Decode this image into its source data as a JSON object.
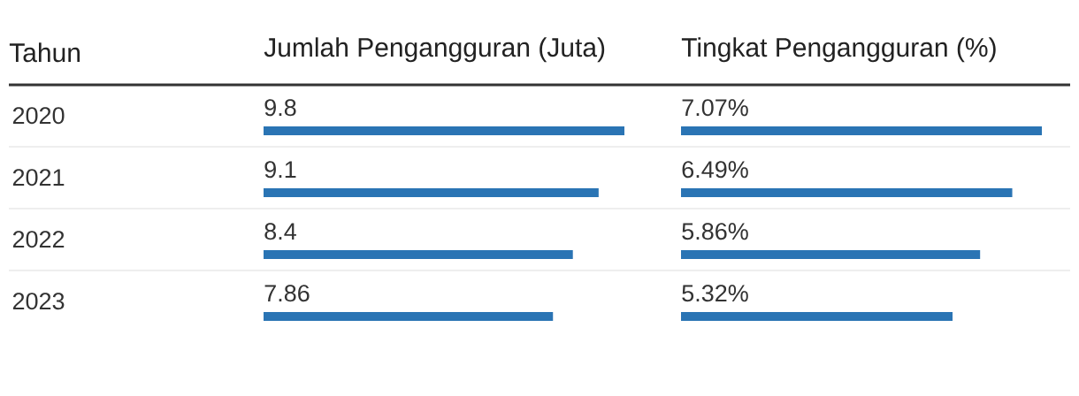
{
  "chart_data": [
    {
      "type": "bar",
      "orientation": "horizontal",
      "title": "Jumlah Pengangguran (Juta)",
      "ylabel": "Tahun",
      "categories": [
        "2020",
        "2021",
        "2022",
        "2023"
      ],
      "values": [
        9.8,
        9.1,
        8.4,
        7.86
      ],
      "color": "#2a74b4",
      "data_labels": true,
      "tick_labels": "y"
    },
    {
      "type": "bar",
      "orientation": "horizontal",
      "title": "Tingkat Pengangguran (%)",
      "categories": [
        "2020",
        "2021",
        "2022",
        "2023"
      ],
      "values": [
        7.07,
        6.49,
        5.86,
        5.32
      ],
      "value_labels": [
        "7.07%",
        "6.49%",
        "5.86%",
        "5.32%"
      ],
      "color": "#2a74b4",
      "tick_labels": false
    }
  ]
}
